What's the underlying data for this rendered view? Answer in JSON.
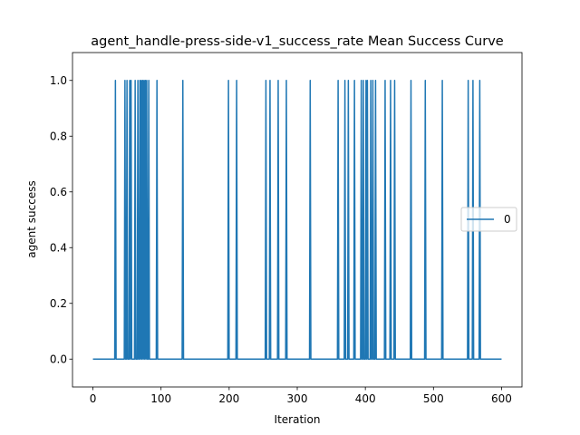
{
  "chart_data": {
    "type": "line",
    "title": "agent_handle-press-side-v1_success_rate Mean Success Curve",
    "xlabel": "Iteration",
    "ylabel": "agent success",
    "xlim": [
      -30,
      630
    ],
    "ylim": [
      -0.1,
      1.1
    ],
    "xticks": [
      0,
      100,
      200,
      300,
      400,
      500,
      600
    ],
    "yticks": [
      0.0,
      0.2,
      0.4,
      0.6,
      0.8,
      1.0
    ],
    "xtick_labels": [
      "0",
      "100",
      "200",
      "300",
      "400",
      "500",
      "600"
    ],
    "ytick_labels": [
      "0.0",
      "0.2",
      "0.4",
      "0.6",
      "0.8",
      "1.0"
    ],
    "grid": false,
    "legend_position": "center-right",
    "series": [
      {
        "name": "0",
        "color": "#1f77b4",
        "x_range": [
          0,
          600
        ],
        "baseline": 0,
        "spike_value": 1,
        "spike_iterations": [
          33,
          47,
          50,
          54,
          56,
          62,
          66,
          69,
          71,
          73,
          75,
          77,
          79,
          82,
          94,
          132,
          199,
          211,
          254,
          260,
          272,
          284,
          319,
          360,
          370,
          375,
          384,
          394,
          397,
          401,
          403,
          408,
          411,
          415,
          429,
          437,
          443,
          467,
          488,
          513,
          551,
          558,
          568
        ]
      }
    ]
  }
}
